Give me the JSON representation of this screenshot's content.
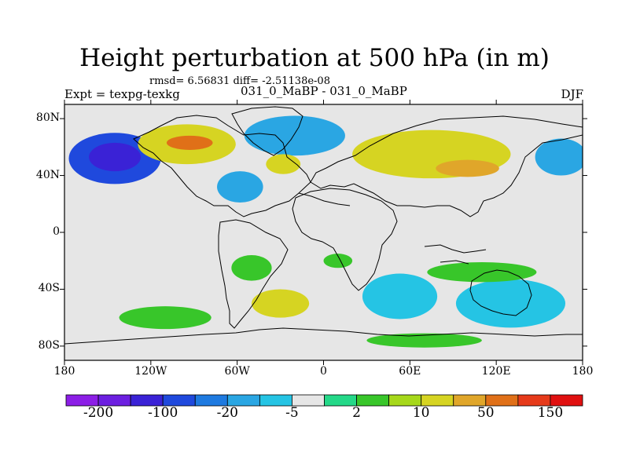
{
  "chart_data": {
    "type": "heatmap",
    "title": "Height perturbation at 500 hPa (in m)",
    "subtitle": "rmsd= 6.56831 diff= -2.51138e-08",
    "left_label": "Expt = texpg-texkg",
    "center_label": "031_0_MaBP - 031_0_MaBP",
    "right_label": "DJF",
    "x_range": [
      -180,
      180
    ],
    "y_range": [
      -90,
      90
    ],
    "x_ticks": [
      {
        "value": -180,
        "label": "180"
      },
      {
        "value": -120,
        "label": "120W"
      },
      {
        "value": -60,
        "label": "60W"
      },
      {
        "value": 0,
        "label": "0"
      },
      {
        "value": 60,
        "label": "60E"
      },
      {
        "value": 120,
        "label": "120E"
      },
      {
        "value": 180,
        "label": "180"
      }
    ],
    "y_ticks": [
      {
        "value": 80,
        "label": "80N"
      },
      {
        "value": 40,
        "label": "40N"
      },
      {
        "value": 0,
        "label": "0"
      },
      {
        "value": -40,
        "label": "40S"
      },
      {
        "value": -80,
        "label": "80S"
      }
    ],
    "colorbar": {
      "colors": [
        "#8c1ee6",
        "#6c1fe0",
        "#3a22d6",
        "#1f49dd",
        "#1e7ae0",
        "#2aa6e3",
        "#25c4e4",
        "#e6e6e6",
        "#24d888",
        "#38c62a",
        "#a6d81a",
        "#d6d422",
        "#e0a62a",
        "#e07018",
        "#e63a1a",
        "#e01010"
      ],
      "labels": [
        {
          "boundary": 1,
          "text": "-200"
        },
        {
          "boundary": 3,
          "text": "-100"
        },
        {
          "boundary": 5,
          "text": "-20"
        },
        {
          "boundary": 7,
          "text": "-5"
        },
        {
          "boundary": 9,
          "text": "2"
        },
        {
          "boundary": 11,
          "text": "10"
        },
        {
          "boundary": 13,
          "text": "50"
        },
        {
          "boundary": 15,
          "text": "150"
        }
      ]
    },
    "anomaly_features": [
      {
        "lon": -145,
        "lat": 52,
        "rx": 32,
        "ry": 18,
        "value": -100
      },
      {
        "lon": -145,
        "lat": 53,
        "rx": 18,
        "ry": 10,
        "value": -150
      },
      {
        "lon": -95,
        "lat": 62,
        "rx": 34,
        "ry": 14,
        "value": 15
      },
      {
        "lon": -93,
        "lat": 63,
        "rx": 16,
        "ry": 5,
        "value": 50
      },
      {
        "lon": -58,
        "lat": 32,
        "rx": 16,
        "ry": 11,
        "value": -20
      },
      {
        "lon": -20,
        "lat": 68,
        "rx": 35,
        "ry": 14,
        "value": -20
      },
      {
        "lon": -28,
        "lat": 48,
        "rx": 12,
        "ry": 7,
        "value": 10
      },
      {
        "lon": 75,
        "lat": 55,
        "rx": 55,
        "ry": 17,
        "value": 10
      },
      {
        "lon": 100,
        "lat": 45,
        "rx": 22,
        "ry": 6,
        "value": 25
      },
      {
        "lon": 105,
        "lat": 12,
        "rx": 30,
        "ry": 6,
        "value": -5
      },
      {
        "lon": 165,
        "lat": 53,
        "rx": 18,
        "ry": 13,
        "value": -20
      },
      {
        "lon": -100,
        "lat": -28,
        "rx": 22,
        "ry": 7,
        "value": -5
      },
      {
        "lon": -50,
        "lat": -25,
        "rx": 14,
        "ry": 9,
        "value": 4
      },
      {
        "lon": 10,
        "lat": -20,
        "rx": 10,
        "ry": 5,
        "value": 4
      },
      {
        "lon": 53,
        "lat": -45,
        "rx": 26,
        "ry": 16,
        "value": -10
      },
      {
        "lon": -30,
        "lat": -50,
        "rx": 20,
        "ry": 10,
        "value": 10
      },
      {
        "lon": -110,
        "lat": -60,
        "rx": 32,
        "ry": 8,
        "value": 3
      },
      {
        "lon": 130,
        "lat": -50,
        "rx": 38,
        "ry": 17,
        "value": -10
      },
      {
        "lon": 110,
        "lat": -28,
        "rx": 38,
        "ry": 7,
        "value": 4
      },
      {
        "lon": -168,
        "lat": -55,
        "rx": 10,
        "ry": 12,
        "value": -5
      },
      {
        "lon": 70,
        "lat": -76,
        "rx": 40,
        "ry": 5,
        "value": 4
      }
    ]
  }
}
